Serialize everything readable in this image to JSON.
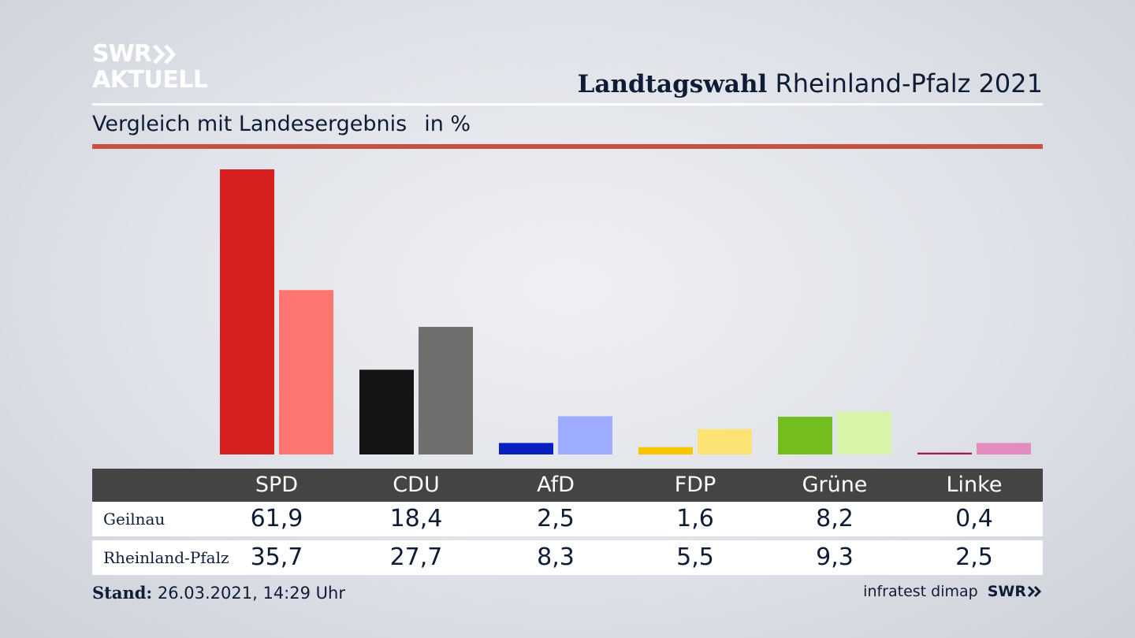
{
  "brand": {
    "line1": "SWR",
    "line2": "AKTUELL"
  },
  "header": {
    "title_bold": "Landtagswahl",
    "title_rest": "Rheinland-Pfalz 2021"
  },
  "subtitle": {
    "text": "Vergleich mit Landesergebnis",
    "unit": "in %"
  },
  "table": {
    "rows": [
      {
        "label": "Geilnau",
        "values": [
          "61,9",
          "18,4",
          "2,5",
          "1,6",
          "8,2",
          "0,4"
        ]
      },
      {
        "label": "Rheinland-Pfalz",
        "values": [
          "35,7",
          "27,7",
          "8,3",
          "5,5",
          "9,3",
          "2,5"
        ]
      }
    ]
  },
  "footer": {
    "stand_label": "Stand:",
    "stand_value": "26.03.2021, 14:29 Uhr",
    "source": "infratest dimap",
    "source_logo": "SWR"
  },
  "chart_data": {
    "type": "bar",
    "categories": [
      "SPD",
      "CDU",
      "AfD",
      "FDP",
      "Grüne",
      "Linke"
    ],
    "series": [
      {
        "name": "Geilnau",
        "values": [
          61.9,
          18.4,
          2.5,
          1.6,
          8.2,
          0.4
        ],
        "colors": [
          "#d62020",
          "#141414",
          "#0a1fc0",
          "#f7c600",
          "#74bd1f",
          "#a0185a"
        ]
      },
      {
        "name": "Rheinland-Pfalz",
        "values": [
          35.7,
          27.7,
          8.3,
          5.5,
          9.3,
          2.5
        ],
        "colors": [
          "#ff7570",
          "#716f6d",
          "#9dacff",
          "#fde274",
          "#d6f5a8",
          "#e28cbf"
        ]
      }
    ],
    "ylim": [
      0,
      61.9
    ],
    "grid": false,
    "legend": "table-below"
  }
}
